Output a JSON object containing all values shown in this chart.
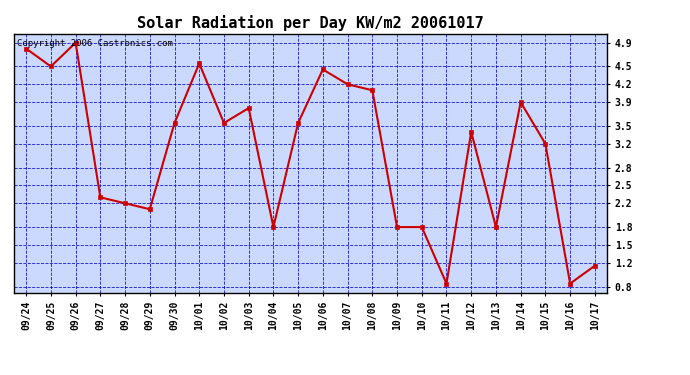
{
  "title": "Solar Radiation per Day KW/m2 20061017",
  "copyright_text": "Copyright 2006 Castronics.com",
  "dates": [
    "09/24",
    "09/25",
    "09/26",
    "09/27",
    "09/28",
    "09/29",
    "09/30",
    "10/01",
    "10/02",
    "10/03",
    "10/04",
    "10/05",
    "10/06",
    "10/07",
    "10/08",
    "10/09",
    "10/10",
    "10/11",
    "10/12",
    "10/13",
    "10/14",
    "10/15",
    "10/16",
    "10/17"
  ],
  "values": [
    4.8,
    4.5,
    4.9,
    2.3,
    2.2,
    2.1,
    3.55,
    4.55,
    3.55,
    3.8,
    1.8,
    3.55,
    4.45,
    4.2,
    4.1,
    1.8,
    1.8,
    0.85,
    3.4,
    1.8,
    3.9,
    3.2,
    0.85,
    1.15
  ],
  "line_color": "#cc0000",
  "marker_color": "#cc0000",
  "bg_color": "#ccd9ff",
  "grid_color": "#0000cc",
  "ylim_min": 0.7,
  "ylim_max": 5.05,
  "yticks": [
    0.8,
    1.2,
    1.5,
    1.8,
    2.2,
    2.5,
    2.8,
    3.2,
    3.5,
    3.9,
    4.2,
    4.5,
    4.9
  ],
  "title_fontsize": 11,
  "tick_fontsize": 7,
  "copyright_fontsize": 6.5
}
